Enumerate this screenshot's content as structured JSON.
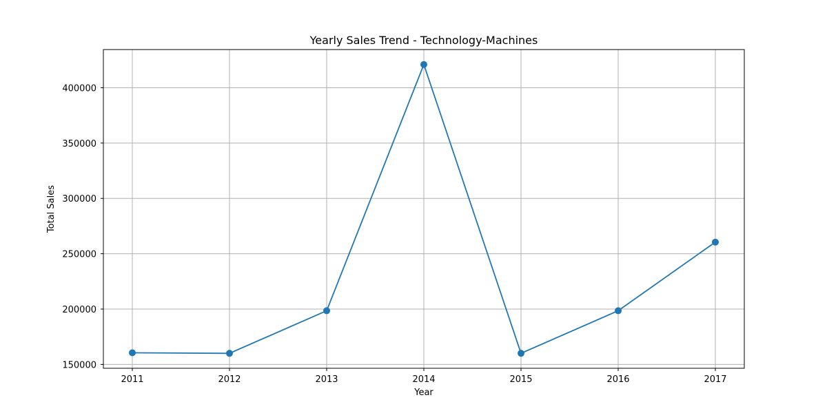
{
  "chart_data": {
    "type": "line",
    "title": "Yearly Sales Trend - Technology-Machines",
    "xlabel": "Year",
    "ylabel": "Total Sales",
    "categories": [
      "2011",
      "2012",
      "2013",
      "2014",
      "2015",
      "2016",
      "2017"
    ],
    "series": [
      {
        "values": [
          160500,
          160000,
          198500,
          421000,
          160000,
          198500,
          260500
        ]
      }
    ],
    "yticks": [
      150000,
      200000,
      250000,
      300000,
      350000,
      400000
    ],
    "ylim": [
      146500,
      434500
    ],
    "grid": true,
    "markers": true,
    "colors": {
      "line": "#1f77b4",
      "marker": "#1f77b4",
      "grid": "#b0b0b0"
    }
  }
}
